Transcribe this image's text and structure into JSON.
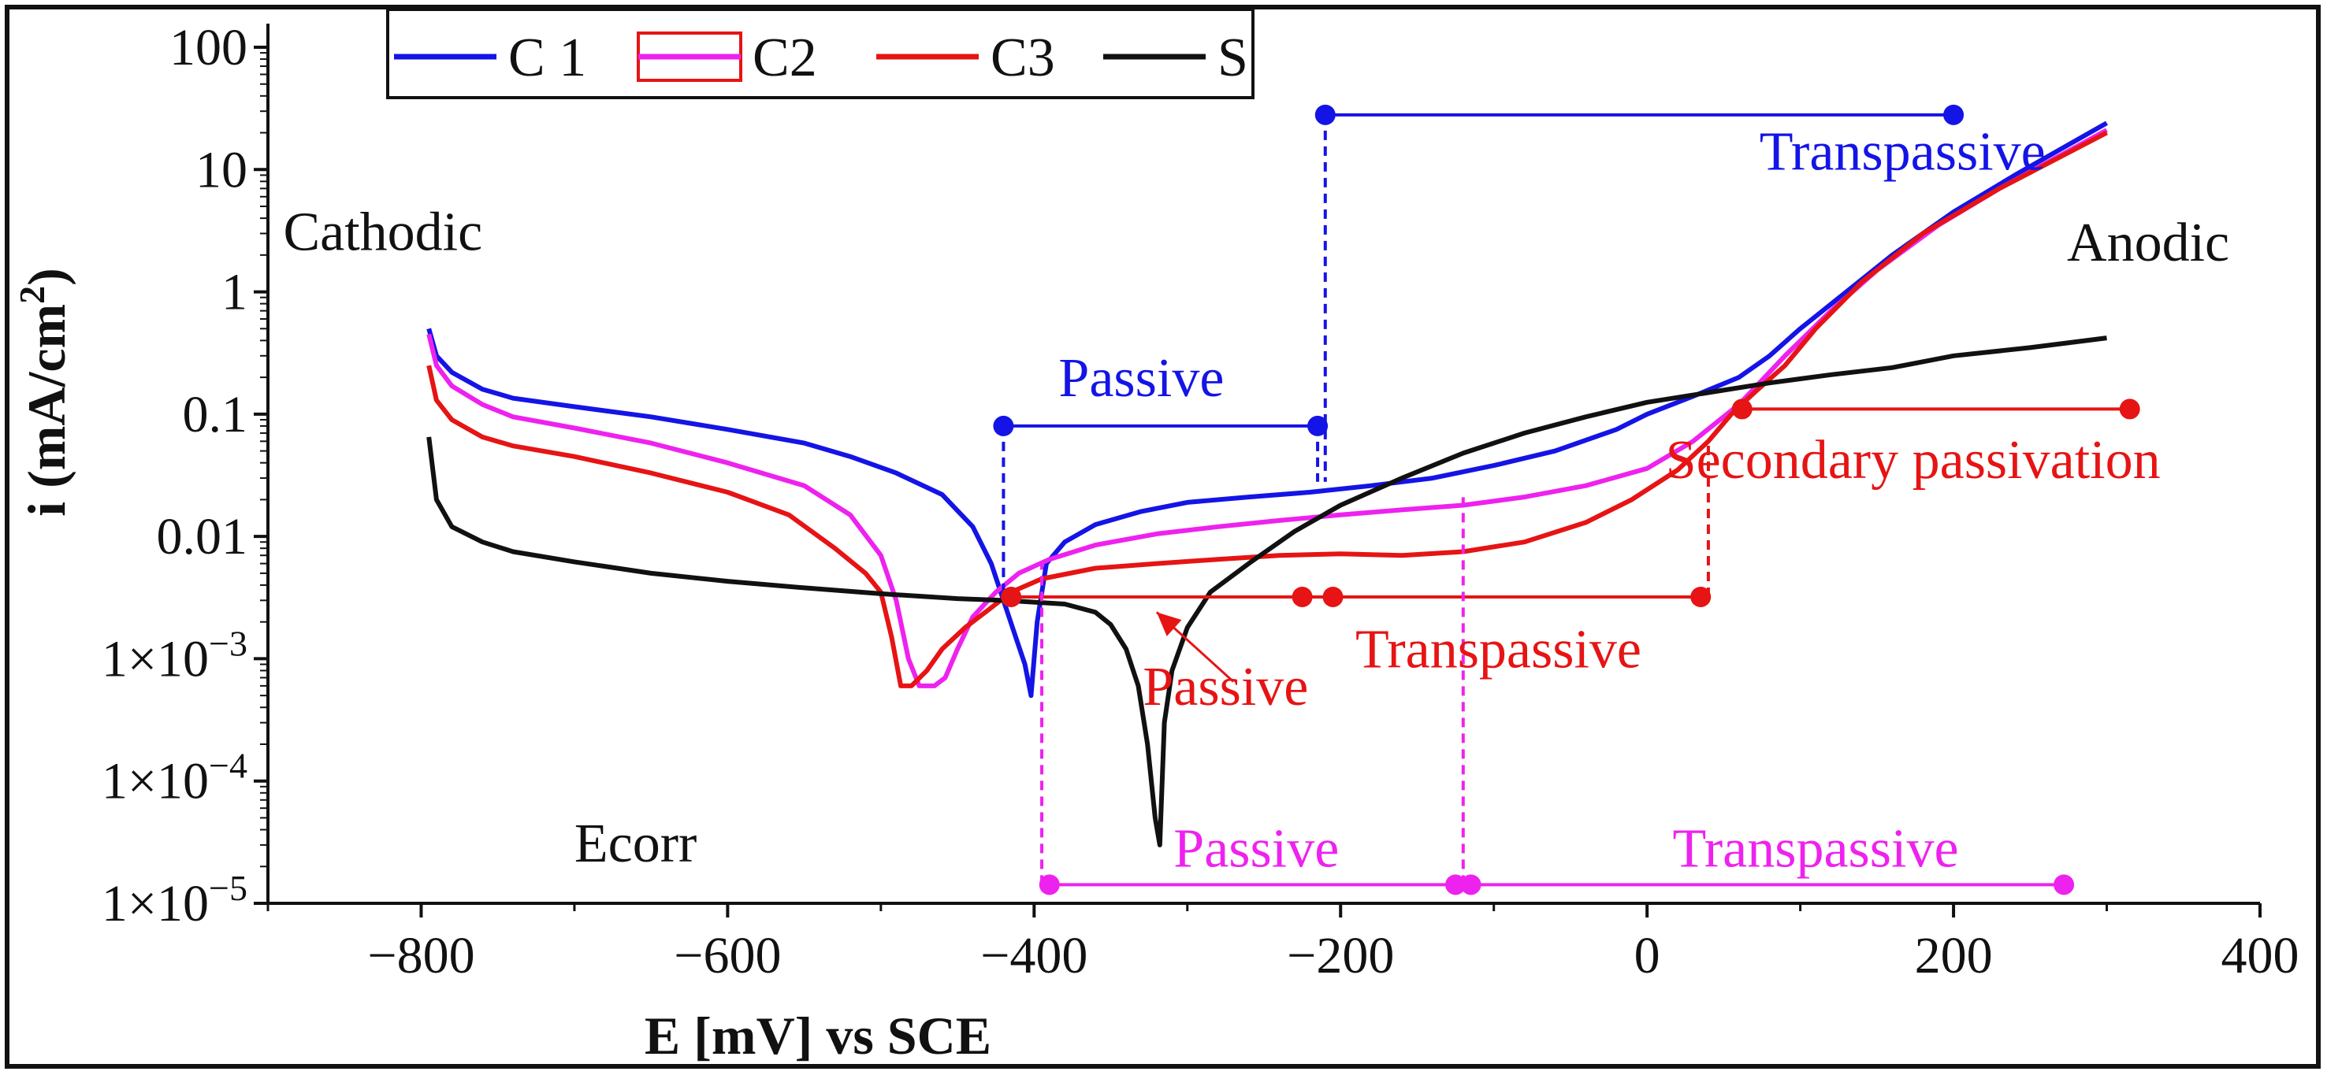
{
  "chart_data": {
    "type": "line",
    "xlabel": "E [mV] vs SCE",
    "ylabel_main": "i (mA/cm",
    "ylabel_sup": "2",
    "ylabel_close": ")",
    "xlim": [
      -900,
      400
    ],
    "ylim_log10": [
      -5,
      2
    ],
    "x_ticks": [
      -800,
      -600,
      -400,
      -200,
      0,
      200,
      400
    ],
    "x_tick_labels": [
      "−800",
      "−600",
      "−400",
      "−200",
      "0",
      "200",
      "400"
    ],
    "y_ticks_log10": [
      2,
      1,
      0,
      -1,
      -2,
      -3,
      -4,
      -5
    ],
    "y_tick_labels": [
      "100",
      "10",
      "1",
      "0.1",
      "0.01",
      "1×10",
      "1×10",
      "1×10"
    ],
    "y_tick_sup": [
      "",
      "",
      "",
      "",
      "",
      "−3",
      "−4",
      "−5"
    ],
    "series": [
      {
        "name": "C 1",
        "color": "#1414e6",
        "points": [
          [
            -795,
            0.5
          ],
          [
            -790,
            0.3
          ],
          [
            -780,
            0.22
          ],
          [
            -760,
            0.16
          ],
          [
            -740,
            0.135
          ],
          [
            -700,
            0.115
          ],
          [
            -650,
            0.095
          ],
          [
            -600,
            0.075
          ],
          [
            -550,
            0.058
          ],
          [
            -520,
            0.045
          ],
          [
            -490,
            0.033
          ],
          [
            -460,
            0.022
          ],
          [
            -440,
            0.012
          ],
          [
            -428,
            0.006
          ],
          [
            -420,
            0.003
          ],
          [
            -412,
            0.0015
          ],
          [
            -406,
            0.0009
          ],
          [
            -402,
            0.0005
          ],
          [
            -398,
            0.002
          ],
          [
            -392,
            0.006
          ],
          [
            -380,
            0.009
          ],
          [
            -360,
            0.0125
          ],
          [
            -330,
            0.016
          ],
          [
            -300,
            0.019
          ],
          [
            -260,
            0.021
          ],
          [
            -220,
            0.023
          ],
          [
            -180,
            0.026
          ],
          [
            -140,
            0.03
          ],
          [
            -100,
            0.038
          ],
          [
            -60,
            0.05
          ],
          [
            -20,
            0.075
          ],
          [
            0,
            0.1
          ],
          [
            30,
            0.14
          ],
          [
            60,
            0.2
          ],
          [
            80,
            0.3
          ],
          [
            100,
            0.5
          ],
          [
            130,
            1.0
          ],
          [
            160,
            2.0
          ],
          [
            200,
            4.5
          ],
          [
            240,
            9.0
          ],
          [
            300,
            24
          ]
        ]
      },
      {
        "name": "C2",
        "color": "#ee22ee",
        "points": [
          [
            -795,
            0.45
          ],
          [
            -790,
            0.25
          ],
          [
            -780,
            0.17
          ],
          [
            -760,
            0.12
          ],
          [
            -740,
            0.095
          ],
          [
            -700,
            0.077
          ],
          [
            -650,
            0.058
          ],
          [
            -600,
            0.04
          ],
          [
            -550,
            0.026
          ],
          [
            -520,
            0.015
          ],
          [
            -500,
            0.007
          ],
          [
            -490,
            0.003
          ],
          [
            -482,
            0.001
          ],
          [
            -475,
            0.0006
          ],
          [
            -465,
            0.0006
          ],
          [
            -458,
            0.0007
          ],
          [
            -450,
            0.0012
          ],
          [
            -440,
            0.0022
          ],
          [
            -425,
            0.0035
          ],
          [
            -410,
            0.005
          ],
          [
            -390,
            0.0065
          ],
          [
            -360,
            0.0085
          ],
          [
            -320,
            0.0105
          ],
          [
            -280,
            0.012
          ],
          [
            -240,
            0.0135
          ],
          [
            -200,
            0.015
          ],
          [
            -160,
            0.0165
          ],
          [
            -120,
            0.018
          ],
          [
            -80,
            0.021
          ],
          [
            -40,
            0.026
          ],
          [
            0,
            0.036
          ],
          [
            30,
            0.06
          ],
          [
            60,
            0.12
          ],
          [
            90,
            0.3
          ],
          [
            120,
            0.7
          ],
          [
            150,
            1.5
          ],
          [
            190,
            3.5
          ],
          [
            230,
            7.0
          ],
          [
            300,
            21
          ]
        ]
      },
      {
        "name": "C3",
        "color": "#e61414",
        "points": [
          [
            -795,
            0.25
          ],
          [
            -790,
            0.13
          ],
          [
            -780,
            0.09
          ],
          [
            -760,
            0.065
          ],
          [
            -740,
            0.055
          ],
          [
            -700,
            0.045
          ],
          [
            -650,
            0.033
          ],
          [
            -600,
            0.023
          ],
          [
            -560,
            0.015
          ],
          [
            -530,
            0.008
          ],
          [
            -510,
            0.005
          ],
          [
            -500,
            0.0035
          ],
          [
            -493,
            0.0015
          ],
          [
            -487,
            0.0006
          ],
          [
            -480,
            0.0006
          ],
          [
            -470,
            0.0008
          ],
          [
            -460,
            0.0012
          ],
          [
            -445,
            0.0018
          ],
          [
            -430,
            0.0025
          ],
          [
            -415,
            0.0035
          ],
          [
            -395,
            0.0045
          ],
          [
            -360,
            0.0055
          ],
          [
            -320,
            0.006
          ],
          [
            -280,
            0.0065
          ],
          [
            -240,
            0.007
          ],
          [
            -200,
            0.0072
          ],
          [
            -160,
            0.007
          ],
          [
            -120,
            0.0075
          ],
          [
            -80,
            0.009
          ],
          [
            -40,
            0.013
          ],
          [
            -10,
            0.02
          ],
          [
            20,
            0.035
          ],
          [
            40,
            0.06
          ],
          [
            55,
            0.1
          ],
          [
            70,
            0.15
          ],
          [
            90,
            0.25
          ],
          [
            110,
            0.5
          ],
          [
            140,
            1.2
          ],
          [
            180,
            3.0
          ],
          [
            230,
            7.0
          ],
          [
            300,
            20
          ]
        ]
      },
      {
        "name": "S",
        "color": "#111111",
        "points": [
          [
            -795,
            0.065
          ],
          [
            -790,
            0.02
          ],
          [
            -780,
            0.012
          ],
          [
            -760,
            0.009
          ],
          [
            -740,
            0.0075
          ],
          [
            -700,
            0.0062
          ],
          [
            -650,
            0.005
          ],
          [
            -600,
            0.0043
          ],
          [
            -550,
            0.0038
          ],
          [
            -500,
            0.0034
          ],
          [
            -450,
            0.0031
          ],
          [
            -420,
            0.003
          ],
          [
            -400,
            0.0029
          ],
          [
            -380,
            0.0028
          ],
          [
            -360,
            0.0024
          ],
          [
            -350,
            0.0019
          ],
          [
            -340,
            0.0012
          ],
          [
            -332,
            0.0006
          ],
          [
            -326,
            0.0002
          ],
          [
            -321,
            5e-05
          ],
          [
            -318,
            3e-05
          ],
          [
            -315,
            0.0003
          ],
          [
            -310,
            0.0008
          ],
          [
            -300,
            0.0018
          ],
          [
            -285,
            0.0035
          ],
          [
            -260,
            0.006
          ],
          [
            -230,
            0.011
          ],
          [
            -200,
            0.018
          ],
          [
            -160,
            0.03
          ],
          [
            -120,
            0.048
          ],
          [
            -80,
            0.07
          ],
          [
            -40,
            0.095
          ],
          [
            0,
            0.125
          ],
          [
            40,
            0.15
          ],
          [
            80,
            0.18
          ],
          [
            120,
            0.21
          ],
          [
            160,
            0.24
          ],
          [
            200,
            0.3
          ],
          [
            250,
            0.35
          ],
          [
            300,
            0.42
          ]
        ]
      }
    ],
    "annotations": [
      {
        "text": "Cathodic",
        "color": "#111111",
        "x": -890,
        "y": 2.2,
        "anchor": "start"
      },
      {
        "text": "Anodic",
        "color": "#111111",
        "x": 380,
        "y": 1.8,
        "anchor": "end"
      },
      {
        "text": "Ecorr",
        "color": "#111111",
        "x": -700,
        "y": 2.2e-05,
        "anchor": "start"
      },
      {
        "text": "Transpassive",
        "color": "#1414e6",
        "x": 260,
        "y": 10,
        "anchor": "end"
      },
      {
        "text": "Passive",
        "color": "#1414e6",
        "x": -330,
        "y": 0.14,
        "anchor": "middle"
      },
      {
        "text": "Secondary passivation",
        "color": "#e61414",
        "x": 335,
        "y": 0.03,
        "anchor": "end"
      },
      {
        "text": "Transpassive",
        "color": "#e61414",
        "x": -97,
        "y": 0.00085,
        "anchor": "middle"
      },
      {
        "text": "Passive",
        "color": "#e61414",
        "x": -275,
        "y": 0.00042,
        "anchor": "middle"
      },
      {
        "text": "Passive",
        "color": "#ee22ee",
        "x": -255,
        "y": 2e-05,
        "anchor": "middle"
      },
      {
        "text": "Transpassive",
        "color": "#ee22ee",
        "x": 110,
        "y": 2e-05,
        "anchor": "middle"
      }
    ],
    "ranges": [
      {
        "color": "#1414e6",
        "x1": -420,
        "x2": -215,
        "y": 0.08,
        "drops": [
          {
            "x": -420,
            "y_to": 0.0035
          },
          {
            "x": -215,
            "y_to": 0.028
          }
        ],
        "markers": [
          -420,
          -215
        ]
      },
      {
        "color": "#1414e6",
        "x1": -210,
        "x2": 200,
        "y": 28,
        "drops": [
          {
            "x": -210,
            "y_to": 0.028
          }
        ],
        "markers": [
          -210,
          200
        ]
      },
      {
        "color": "#e61414",
        "x1": -415,
        "x2": 35,
        "y": 0.0032,
        "drops": [
          {
            "x": 40,
            "y_to": 0.06
          }
        ],
        "markers": [
          -415,
          -225,
          -205,
          35
        ]
      },
      {
        "color": "#e61414",
        "x1": 62,
        "x2": 315,
        "y": 0.11,
        "drops": [],
        "markers": [
          62,
          315
        ]
      },
      {
        "color": "#ee22ee",
        "x1": -390,
        "x2": -125,
        "y": 1.42e-05,
        "drops": [
          {
            "x": -395,
            "y_to": 0.006
          },
          {
            "x": -120,
            "y_to": 0.021
          }
        ],
        "markers": [
          -390,
          -125
        ]
      },
      {
        "color": "#ee22ee",
        "x1": -115,
        "x2": 272,
        "y": 1.42e-05,
        "drops": [],
        "markers": [
          -115,
          272
        ]
      }
    ],
    "arrow": {
      "color": "#e61414",
      "x_from": -270,
      "y_from": 0.00065,
      "x_to": -320,
      "y_to": 0.0024
    }
  },
  "legend": {
    "entries": [
      {
        "label": "C 1",
        "color": "#1414e6",
        "style": "line"
      },
      {
        "label": "C2",
        "color": "#ee22ee",
        "style": "box"
      },
      {
        "label": "C3",
        "color": "#e61414",
        "style": "line"
      },
      {
        "label": "S",
        "color": "#111111",
        "style": "line"
      }
    ]
  }
}
